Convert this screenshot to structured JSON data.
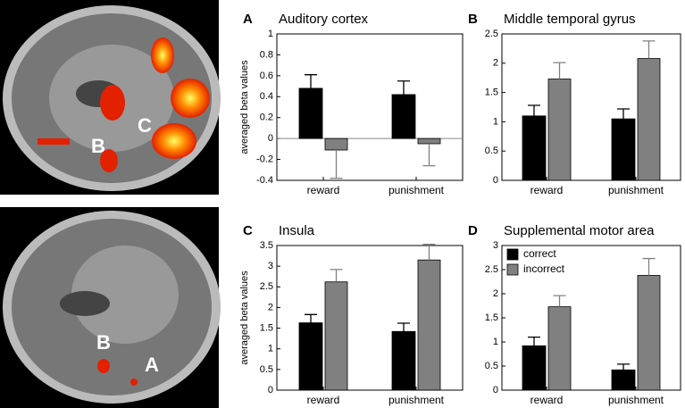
{
  "chart_data": [
    {
      "type": "bar",
      "panel": "A",
      "title": "Auditory cortex",
      "ylabel": "averaged beta values",
      "categories": [
        "reward",
        "punishment"
      ],
      "series": [
        {
          "color": "#000000",
          "values": [
            0.48,
            0.42
          ],
          "errors": [
            0.13,
            0.13
          ]
        },
        {
          "color": "#808080",
          "values": [
            -0.11,
            -0.05
          ],
          "errors": [
            0.27,
            0.21
          ]
        }
      ],
      "ylim": [
        -0.4,
        1
      ],
      "yticks": [
        -0.4,
        -0.2,
        0,
        0.2,
        0.4,
        0.6,
        0.8,
        1
      ]
    },
    {
      "type": "bar",
      "panel": "B",
      "title": "Middle temporal gyrus",
      "categories": [
        "reward",
        "punishment"
      ],
      "series": [
        {
          "color": "#000000",
          "values": [
            1.1,
            1.05
          ],
          "errors": [
            0.18,
            0.17
          ]
        },
        {
          "color": "#808080",
          "values": [
            1.73,
            2.08
          ],
          "errors": [
            0.28,
            0.3
          ]
        }
      ],
      "ylim": [
        0,
        2.5
      ],
      "yticks": [
        0,
        0.5,
        1,
        1.5,
        2,
        2.5
      ]
    },
    {
      "type": "bar",
      "panel": "C",
      "title": "Insula",
      "ylabel": "averaged beta values",
      "categories": [
        "reward",
        "punishment"
      ],
      "series": [
        {
          "color": "#000000",
          "values": [
            1.63,
            1.42
          ],
          "errors": [
            0.2,
            0.2
          ]
        },
        {
          "color": "#808080",
          "values": [
            2.62,
            3.15
          ],
          "errors": [
            0.3,
            0.38
          ]
        }
      ],
      "ylim": [
        0,
        3.5
      ],
      "yticks": [
        0,
        0.5,
        1,
        1.5,
        2,
        2.5,
        3,
        3.5
      ]
    },
    {
      "type": "bar",
      "panel": "D",
      "title": "Supplemental motor area",
      "categories": [
        "reward",
        "punishment"
      ],
      "series": [
        {
          "name": "correct",
          "color": "#000000",
          "values": [
            0.92,
            0.42
          ],
          "errors": [
            0.18,
            0.12
          ]
        },
        {
          "name": "incorrect",
          "color": "#808080",
          "values": [
            1.73,
            2.38
          ],
          "errors": [
            0.23,
            0.35
          ]
        }
      ],
      "ylim": [
        0,
        3
      ],
      "yticks": [
        0,
        0.5,
        1,
        1.5,
        2,
        2.5,
        3
      ],
      "legend": "upper left"
    }
  ],
  "images": [
    {
      "labels": [
        "B",
        "C"
      ]
    },
    {
      "labels": [
        "B",
        "A"
      ]
    }
  ]
}
